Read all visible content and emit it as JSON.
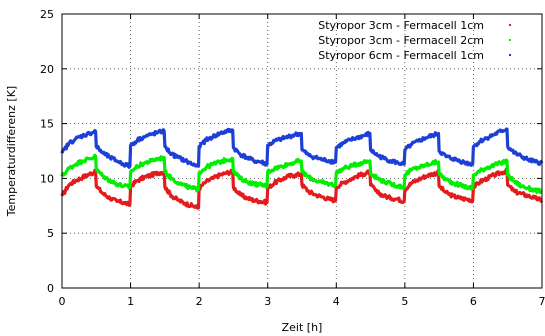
{
  "chart_data": {
    "type": "line",
    "title": "",
    "xlabel": "Zeit [h]",
    "ylabel": "Temperaturdifferenz [K]",
    "xlim": [
      0,
      7
    ],
    "ylim": [
      0,
      25
    ],
    "xticks": [
      "0",
      "1",
      "2",
      "3",
      "4",
      "5",
      "6",
      "7"
    ],
    "yticks": [
      "0",
      "5",
      "10",
      "15",
      "20",
      "25"
    ],
    "grid": true,
    "legend_position": "top-right",
    "series": [
      {
        "name": "Styropor 3cm - Fermacell 1cm",
        "color": "#e41a1c",
        "x": [
          0,
          0.1,
          0.2,
          0.3,
          0.4,
          0.49,
          0.5,
          0.6,
          0.7,
          0.8,
          0.9,
          0.99,
          1.0,
          1.1,
          1.2,
          1.3,
          1.4,
          1.49,
          1.5,
          1.6,
          1.7,
          1.8,
          1.9,
          1.99,
          2.0,
          2.1,
          2.2,
          2.3,
          2.4,
          2.49,
          2.5,
          2.6,
          2.7,
          2.8,
          2.9,
          2.99,
          3.0,
          3.1,
          3.2,
          3.3,
          3.4,
          3.49,
          3.5,
          3.6,
          3.7,
          3.8,
          3.9,
          3.99,
          4.0,
          4.1,
          4.2,
          4.3,
          4.4,
          4.49,
          4.5,
          4.6,
          4.7,
          4.8,
          4.9,
          4.99,
          5.0,
          5.1,
          5.2,
          5.3,
          5.4,
          5.49,
          5.5,
          5.6,
          5.7,
          5.8,
          5.9,
          5.99,
          6.0,
          6.1,
          6.2,
          6.3,
          6.4,
          6.49,
          6.5,
          6.6,
          6.7,
          6.8,
          6.9,
          7.0
        ],
        "y": [
          8.4,
          9.4,
          9.8,
          10.1,
          10.4,
          10.6,
          9.3,
          8.6,
          8.2,
          7.9,
          7.8,
          7.6,
          9.3,
          9.8,
          10.1,
          10.3,
          10.5,
          10.6,
          9.2,
          8.4,
          8.0,
          7.7,
          7.5,
          7.3,
          9.1,
          9.7,
          10.0,
          10.3,
          10.5,
          10.6,
          9.2,
          8.5,
          8.2,
          8.0,
          7.9,
          7.8,
          9.1,
          9.6,
          9.9,
          10.2,
          10.3,
          10.4,
          9.4,
          8.8,
          8.5,
          8.3,
          8.1,
          8.0,
          9.2,
          9.6,
          9.9,
          10.2,
          10.4,
          10.6,
          9.4,
          8.7,
          8.4,
          8.2,
          8.1,
          7.9,
          9.0,
          9.6,
          9.9,
          10.2,
          10.4,
          10.5,
          9.3,
          8.7,
          8.4,
          8.2,
          8.1,
          8.0,
          9.2,
          9.7,
          10.0,
          10.3,
          10.5,
          10.7,
          9.4,
          8.8,
          8.6,
          8.4,
          8.2,
          8.0
        ]
      },
      {
        "name": "Styropor 3cm - Fermacell 2cm",
        "color": "#00ee00",
        "x": [
          0,
          0.1,
          0.2,
          0.3,
          0.4,
          0.49,
          0.5,
          0.6,
          0.7,
          0.8,
          0.9,
          0.99,
          1.0,
          1.1,
          1.2,
          1.3,
          1.4,
          1.49,
          1.5,
          1.6,
          1.7,
          1.8,
          1.9,
          1.99,
          2.0,
          2.1,
          2.2,
          2.3,
          2.4,
          2.49,
          2.5,
          2.6,
          2.7,
          2.8,
          2.9,
          2.99,
          3.0,
          3.1,
          3.2,
          3.3,
          3.4,
          3.49,
          3.5,
          3.6,
          3.7,
          3.8,
          3.9,
          3.99,
          4.0,
          4.1,
          4.2,
          4.3,
          4.4,
          4.49,
          4.5,
          4.6,
          4.7,
          4.8,
          4.9,
          4.99,
          5.0,
          5.1,
          5.2,
          5.3,
          5.4,
          5.49,
          5.5,
          5.6,
          5.7,
          5.8,
          5.9,
          5.99,
          6.0,
          6.1,
          6.2,
          6.3,
          6.4,
          6.49,
          6.5,
          6.6,
          6.7,
          6.8,
          6.9,
          7.0
        ],
        "y": [
          10.2,
          10.9,
          11.3,
          11.6,
          11.8,
          12.0,
          10.8,
          10.2,
          9.8,
          9.5,
          9.3,
          9.2,
          10.6,
          11.1,
          11.4,
          11.6,
          11.8,
          11.9,
          10.6,
          10.0,
          9.6,
          9.3,
          9.1,
          9.0,
          10.5,
          11.0,
          11.3,
          11.5,
          11.7,
          11.8,
          10.6,
          10.0,
          9.7,
          9.5,
          9.4,
          9.3,
          10.6,
          10.9,
          11.1,
          11.3,
          11.5,
          11.6,
          10.6,
          10.1,
          9.8,
          9.6,
          9.5,
          9.4,
          10.5,
          10.9,
          11.1,
          11.3,
          11.5,
          11.6,
          10.5,
          10.0,
          9.7,
          9.5,
          9.3,
          9.2,
          10.3,
          10.8,
          11.0,
          11.2,
          11.4,
          11.5,
          10.4,
          9.9,
          9.6,
          9.4,
          9.2,
          9.1,
          10.3,
          10.7,
          11.0,
          11.2,
          11.4,
          11.6,
          10.3,
          9.7,
          9.3,
          9.1,
          8.9,
          8.8
        ]
      },
      {
        "name": "Styropor 6cm - Fermacell 1cm",
        "color": "#1c3fd8",
        "x": [
          0,
          0.1,
          0.2,
          0.3,
          0.4,
          0.49,
          0.5,
          0.6,
          0.7,
          0.8,
          0.9,
          0.99,
          1.0,
          1.1,
          1.2,
          1.3,
          1.4,
          1.49,
          1.5,
          1.6,
          1.7,
          1.8,
          1.9,
          1.99,
          2.0,
          2.1,
          2.2,
          2.3,
          2.4,
          2.49,
          2.5,
          2.6,
          2.7,
          2.8,
          2.9,
          2.99,
          3.0,
          3.1,
          3.2,
          3.3,
          3.4,
          3.49,
          3.5,
          3.6,
          3.7,
          3.8,
          3.9,
          3.99,
          4.0,
          4.1,
          4.2,
          4.3,
          4.4,
          4.49,
          4.5,
          4.6,
          4.7,
          4.8,
          4.9,
          4.99,
          5.0,
          5.1,
          5.2,
          5.3,
          5.4,
          5.49,
          5.5,
          5.6,
          5.7,
          5.8,
          5.9,
          5.99,
          6.0,
          6.1,
          6.2,
          6.3,
          6.4,
          6.49,
          6.5,
          6.6,
          6.7,
          6.8,
          6.9,
          7.0
        ],
        "y": [
          12.3,
          13.2,
          13.6,
          13.9,
          14.1,
          14.3,
          12.9,
          12.3,
          11.9,
          11.6,
          11.3,
          11.1,
          13.0,
          13.5,
          13.8,
          14.0,
          14.2,
          14.3,
          12.9,
          12.2,
          11.9,
          11.6,
          11.3,
          11.1,
          12.9,
          13.5,
          13.8,
          14.1,
          14.3,
          14.4,
          12.8,
          12.2,
          11.9,
          11.6,
          11.5,
          11.3,
          13.0,
          13.4,
          13.6,
          13.8,
          14.0,
          14.1,
          12.6,
          12.1,
          11.9,
          11.7,
          11.6,
          11.5,
          12.8,
          13.2,
          13.5,
          13.7,
          13.9,
          14.1,
          12.6,
          12.1,
          11.8,
          11.6,
          11.4,
          11.3,
          12.6,
          13.1,
          13.4,
          13.7,
          13.9,
          14.1,
          12.5,
          12.0,
          11.8,
          11.6,
          11.4,
          11.3,
          12.9,
          13.4,
          13.7,
          14.0,
          14.3,
          14.5,
          12.9,
          12.3,
          12.0,
          11.7,
          11.5,
          11.4
        ]
      }
    ]
  }
}
